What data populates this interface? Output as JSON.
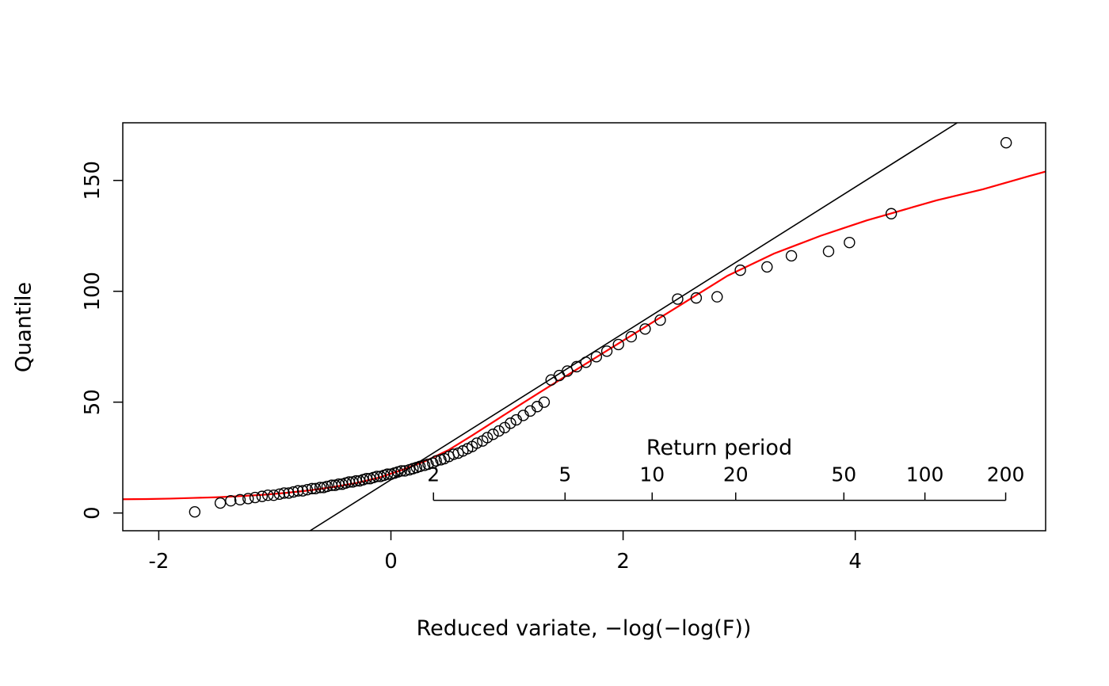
{
  "chart_data": {
    "type": "scatter",
    "title": "",
    "xlabel": "Reduced variate,  −log(−log(F))",
    "ylabel": "Quantile",
    "xlim": [
      -2.31,
      5.64
    ],
    "ylim": [
      -8,
      176
    ],
    "x_tick_labels": [
      "-2",
      "0",
      "2",
      "4"
    ],
    "x_tick_values": [
      -2,
      0,
      2,
      4
    ],
    "y_tick_labels": [
      "0",
      "50",
      "100",
      "150"
    ],
    "y_tick_values": [
      0,
      50,
      100,
      150
    ],
    "grid": false,
    "colors": {
      "points": "#000000",
      "gumbel_line": "#000000",
      "fit_curve": "#ff0000",
      "background": "#ffffff",
      "frame": "#000000"
    },
    "gumbel_line": {
      "intercept": 15,
      "slope": 33
    },
    "fit_curve": [
      [
        -2.31,
        6.2
      ],
      [
        -2.1,
        6.3
      ],
      [
        -1.9,
        6.5
      ],
      [
        -1.7,
        6.8
      ],
      [
        -1.5,
        7.1
      ],
      [
        -1.3,
        7.6
      ],
      [
        -1.1,
        8.2
      ],
      [
        -0.9,
        9.1
      ],
      [
        -0.7,
        10.2
      ],
      [
        -0.5,
        11.7
      ],
      [
        -0.3,
        13.5
      ],
      [
        -0.1,
        16.0
      ],
      [
        0.1,
        19.5
      ],
      [
        0.3,
        23.5
      ],
      [
        0.5,
        28.5
      ],
      [
        0.7,
        35.0
      ],
      [
        0.9,
        41.7
      ],
      [
        1.1,
        48.4
      ],
      [
        1.3,
        55.0
      ],
      [
        1.5,
        61.5
      ],
      [
        1.7,
        68.0
      ],
      [
        1.9,
        74.5
      ],
      [
        2.1,
        81.0
      ],
      [
        2.3,
        87.5
      ],
      [
        2.5,
        94.0
      ],
      [
        2.7,
        100.5
      ],
      [
        2.9,
        107.0
      ],
      [
        3.1,
        112.0
      ],
      [
        3.3,
        117.0
      ],
      [
        3.5,
        121.0
      ],
      [
        3.7,
        125.0
      ],
      [
        3.9,
        128.5
      ],
      [
        4.1,
        132.0
      ],
      [
        4.3,
        135.0
      ],
      [
        4.5,
        138.0
      ],
      [
        4.7,
        141.0
      ],
      [
        4.9,
        143.5
      ],
      [
        5.1,
        146.0
      ],
      [
        5.3,
        149.0
      ],
      [
        5.5,
        152.0
      ],
      [
        5.64,
        154.0
      ]
    ],
    "points": [
      [
        -1.69,
        0.5
      ],
      [
        -1.47,
        4.5
      ],
      [
        -1.38,
        5.5
      ],
      [
        -1.3,
        6.0
      ],
      [
        -1.23,
        6.5
      ],
      [
        -1.17,
        7.0
      ],
      [
        -1.11,
        7.5
      ],
      [
        -1.06,
        8.0
      ],
      [
        -1.01,
        8.0
      ],
      [
        -0.96,
        8.5
      ],
      [
        -0.92,
        9.0
      ],
      [
        -0.88,
        9.0
      ],
      [
        -0.84,
        9.5
      ],
      [
        -0.8,
        10.0
      ],
      [
        -0.76,
        10.0
      ],
      [
        -0.72,
        10.5
      ],
      [
        -0.68,
        11.0
      ],
      [
        -0.65,
        11.0
      ],
      [
        -0.61,
        11.5
      ],
      [
        -0.58,
        11.5
      ],
      [
        -0.55,
        12.0
      ],
      [
        -0.51,
        12.5
      ],
      [
        -0.48,
        12.5
      ],
      [
        -0.45,
        13.0
      ],
      [
        -0.42,
        13.0
      ],
      [
        -0.39,
        13.5
      ],
      [
        -0.36,
        14.0
      ],
      [
        -0.33,
        14.0
      ],
      [
        -0.3,
        14.5
      ],
      [
        -0.27,
        14.5
      ],
      [
        -0.24,
        15.0
      ],
      [
        -0.21,
        15.5
      ],
      [
        -0.18,
        15.5
      ],
      [
        -0.15,
        16.0
      ],
      [
        -0.12,
        16.5
      ],
      [
        -0.09,
        16.5
      ],
      [
        -0.06,
        17.0
      ],
      [
        -0.03,
        17.5
      ],
      [
        0.0,
        17.5
      ],
      [
        0.03,
        18.0
      ],
      [
        0.06,
        18.5
      ],
      [
        0.09,
        19.0
      ],
      [
        0.12,
        19.0
      ],
      [
        0.16,
        19.5
      ],
      [
        0.19,
        20.0
      ],
      [
        0.22,
        20.5
      ],
      [
        0.25,
        21.0
      ],
      [
        0.29,
        21.5
      ],
      [
        0.32,
        22.0
      ],
      [
        0.36,
        22.5
      ],
      [
        0.39,
        23.5
      ],
      [
        0.43,
        24.0
      ],
      [
        0.46,
        24.5
      ],
      [
        0.5,
        25.5
      ],
      [
        0.54,
        26.5
      ],
      [
        0.58,
        27.0
      ],
      [
        0.62,
        28.0
      ],
      [
        0.66,
        29.0
      ],
      [
        0.7,
        30.0
      ],
      [
        0.74,
        31.5
      ],
      [
        0.79,
        32.5
      ],
      [
        0.83,
        34.0
      ],
      [
        0.88,
        35.5
      ],
      [
        0.93,
        37.0
      ],
      [
        0.98,
        38.5
      ],
      [
        1.03,
        40.5
      ],
      [
        1.08,
        42.0
      ],
      [
        1.14,
        44.0
      ],
      [
        1.2,
        46.0
      ],
      [
        1.26,
        48.0
      ],
      [
        1.32,
        50.0
      ],
      [
        1.38,
        60.0
      ],
      [
        1.45,
        62.0
      ],
      [
        1.52,
        64.0
      ],
      [
        1.6,
        66.0
      ],
      [
        1.68,
        68.0
      ],
      [
        1.77,
        70.5
      ],
      [
        1.86,
        73.0
      ],
      [
        1.96,
        76.0
      ],
      [
        2.07,
        79.5
      ],
      [
        2.19,
        83.0
      ],
      [
        2.32,
        87.0
      ],
      [
        2.47,
        96.5
      ],
      [
        2.63,
        97.0
      ],
      [
        2.81,
        97.5
      ],
      [
        3.01,
        109.5
      ],
      [
        3.24,
        111.0
      ],
      [
        3.45,
        116.0
      ],
      [
        3.77,
        118.0
      ],
      [
        3.95,
        122.0
      ],
      [
        4.31,
        135.0
      ],
      [
        5.3,
        167.0
      ]
    ],
    "return_period_axis": {
      "label": "Return period",
      "tick_labels": [
        "2",
        "5",
        "10",
        "20",
        "50",
        "100",
        "200"
      ],
      "tick_values": [
        2,
        5,
        10,
        20,
        50,
        100,
        200
      ],
      "y_position": 5.7
    }
  }
}
